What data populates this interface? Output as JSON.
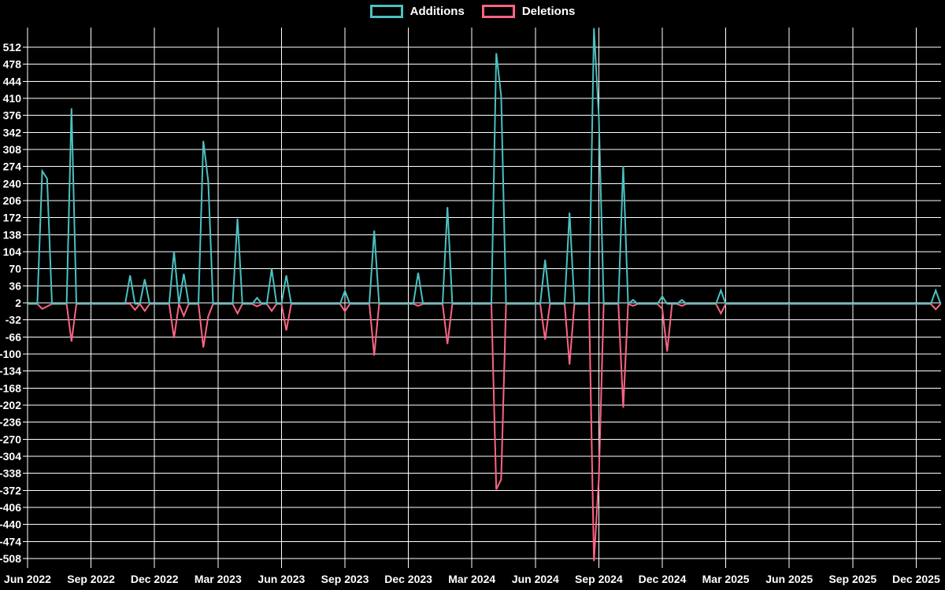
{
  "chart_data": {
    "type": "line",
    "title": "",
    "legend_position": "top",
    "background_color": "#000000",
    "grid_color": "#ffffff",
    "text_color": "#ffffff",
    "x_tick_labels": [
      "Jun 2022",
      "Sep 2022",
      "Dec 2022",
      "Mar 2023",
      "Jun 2023",
      "Sep 2023",
      "Dec 2023",
      "Mar 2024",
      "Jun 2024",
      "Sep 2024",
      "Dec 2024",
      "Mar 2025",
      "Jun 2025",
      "Sep 2025",
      "Dec 2025"
    ],
    "y_ticks": [
      512,
      478,
      444,
      410,
      376,
      342,
      308,
      274,
      240,
      206,
      172,
      138,
      104,
      70,
      36,
      2,
      -32,
      -66,
      -100,
      -134,
      -168,
      -202,
      -236,
      -270,
      -304,
      -338,
      -372,
      -406,
      -440,
      -474,
      -508
    ],
    "ylim": [
      -521,
      553
    ],
    "weeks_per_quarter": 13,
    "weeks_total": 187,
    "baseline_value": 0,
    "grid": true,
    "series": [
      {
        "name": "Additions",
        "color": "#4bc0c0",
        "points": [
          [
            3,
            265
          ],
          [
            4,
            250
          ],
          [
            9,
            390
          ],
          [
            21,
            57
          ],
          [
            24,
            49
          ],
          [
            30,
            105
          ],
          [
            32,
            60
          ],
          [
            36,
            325
          ],
          [
            37,
            245
          ],
          [
            43,
            170
          ],
          [
            47,
            12
          ],
          [
            50,
            70
          ],
          [
            53,
            57
          ],
          [
            65,
            26
          ],
          [
            71,
            146
          ],
          [
            80,
            62
          ],
          [
            86,
            193
          ],
          [
            96,
            500
          ],
          [
            97,
            415
          ],
          [
            106,
            88
          ],
          [
            111,
            182
          ],
          [
            116,
            550
          ],
          [
            117,
            375
          ],
          [
            122,
            275
          ],
          [
            124,
            8
          ],
          [
            130,
            15
          ],
          [
            134,
            8
          ],
          [
            142,
            27
          ],
          [
            186,
            27
          ]
        ]
      },
      {
        "name": "Deletions",
        "color": "#ff6384",
        "points": [
          [
            3,
            -10
          ],
          [
            4,
            -5
          ],
          [
            9,
            -75
          ],
          [
            22,
            -12
          ],
          [
            24,
            -14
          ],
          [
            30,
            -68
          ],
          [
            32,
            -24
          ],
          [
            36,
            -87
          ],
          [
            37,
            -25
          ],
          [
            43,
            -19
          ],
          [
            47,
            -5
          ],
          [
            50,
            -14
          ],
          [
            53,
            -53
          ],
          [
            65,
            -15
          ],
          [
            71,
            -103
          ],
          [
            80,
            -4
          ],
          [
            86,
            -80
          ],
          [
            96,
            -370
          ],
          [
            97,
            -350
          ],
          [
            106,
            -71
          ],
          [
            111,
            -121
          ],
          [
            116,
            -513
          ],
          [
            117,
            -350
          ],
          [
            122,
            -207
          ],
          [
            124,
            -4
          ],
          [
            130,
            -10
          ],
          [
            131,
            -95
          ],
          [
            134,
            -4
          ],
          [
            142,
            -19
          ],
          [
            186,
            -11
          ]
        ]
      }
    ]
  }
}
